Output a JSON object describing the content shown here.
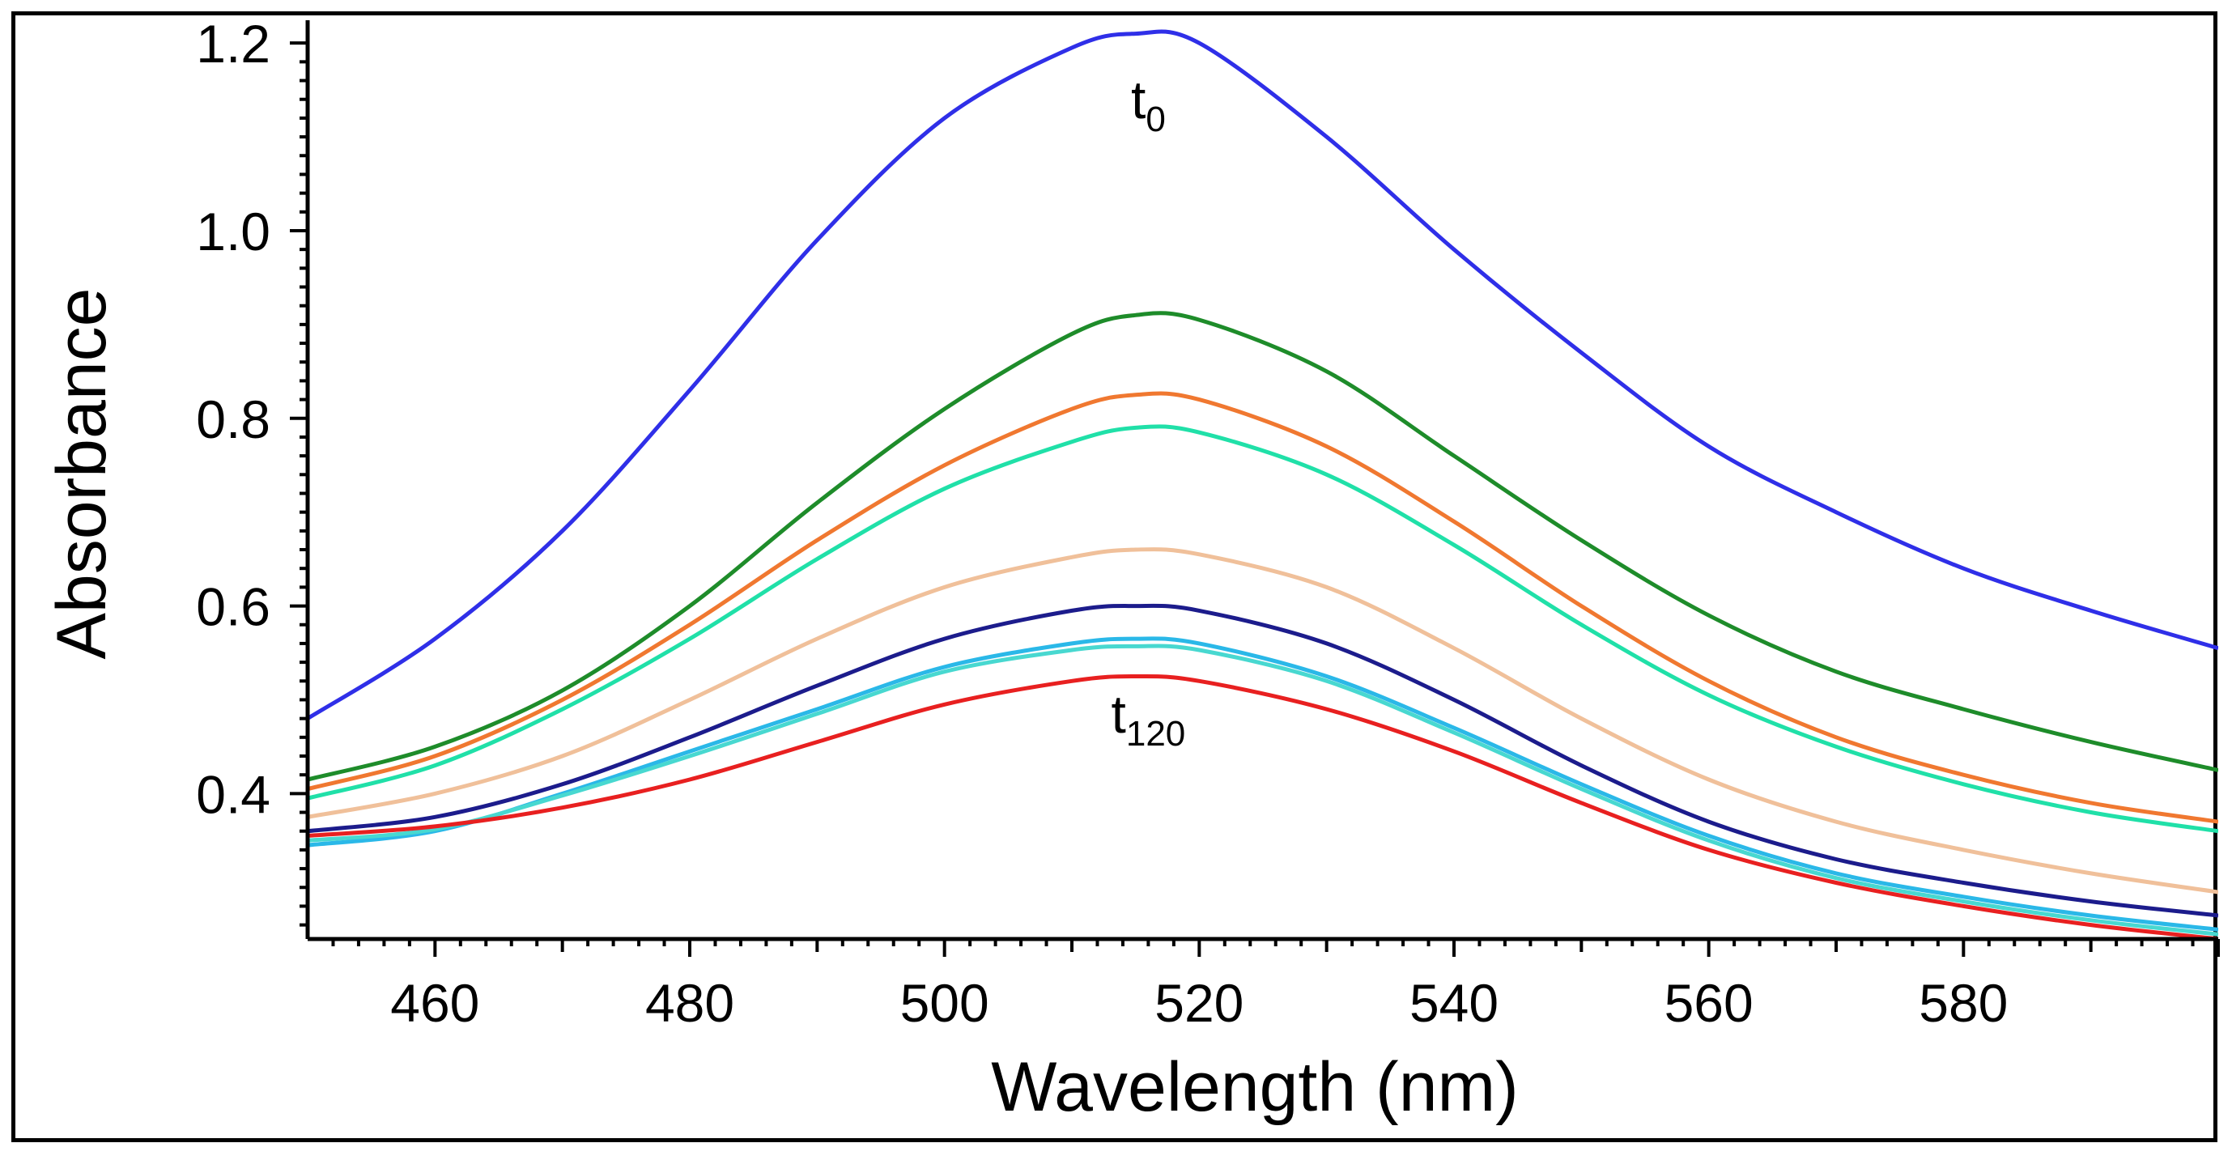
{
  "chart_data": {
    "type": "line",
    "xlabel": "Wavelength (nm)",
    "ylabel": "Absorbance",
    "xlim": [
      450,
      600
    ],
    "ylim": [
      0.245,
      1.22
    ],
    "x_ticks": [
      {
        "value": 460,
        "label": "460"
      },
      {
        "value": 480,
        "label": "480"
      },
      {
        "value": 500,
        "label": "500"
      },
      {
        "value": 520,
        "label": "520"
      },
      {
        "value": 540,
        "label": "540"
      },
      {
        "value": 560,
        "label": "560"
      },
      {
        "value": 580,
        "label": "580"
      }
    ],
    "y_ticks": [
      {
        "value": 0.4,
        "label": "0.4"
      },
      {
        "value": 0.6,
        "label": "0.6"
      },
      {
        "value": 0.8,
        "label": "0.8"
      },
      {
        "value": 1.0,
        "label": "1.0"
      },
      {
        "value": 1.2,
        "label": "1.2"
      }
    ],
    "grid": false,
    "legend": "none",
    "annotations": [
      {
        "base": "t",
        "sub": "0",
        "x": 516,
        "y": 1.12
      },
      {
        "base": "t",
        "sub": "120",
        "x": 516,
        "y": 0.465
      }
    ],
    "series": [
      {
        "color": "#2f2fe8",
        "points": [
          [
            450,
            0.48
          ],
          [
            460,
            0.565
          ],
          [
            470,
            0.68
          ],
          [
            480,
            0.83
          ],
          [
            490,
            0.99
          ],
          [
            500,
            1.12
          ],
          [
            510,
            1.195
          ],
          [
            515,
            1.21
          ],
          [
            520,
            1.2
          ],
          [
            530,
            1.1
          ],
          [
            540,
            0.98
          ],
          [
            550,
            0.87
          ],
          [
            560,
            0.77
          ],
          [
            570,
            0.7
          ],
          [
            580,
            0.64
          ],
          [
            590,
            0.595
          ],
          [
            600,
            0.555
          ]
        ]
      },
      {
        "color": "#1e8c2a",
        "points": [
          [
            450,
            0.415
          ],
          [
            460,
            0.45
          ],
          [
            470,
            0.51
          ],
          [
            480,
            0.6
          ],
          [
            490,
            0.71
          ],
          [
            500,
            0.81
          ],
          [
            510,
            0.89
          ],
          [
            515,
            0.91
          ],
          [
            520,
            0.905
          ],
          [
            530,
            0.85
          ],
          [
            540,
            0.76
          ],
          [
            550,
            0.67
          ],
          [
            560,
            0.59
          ],
          [
            570,
            0.53
          ],
          [
            580,
            0.49
          ],
          [
            590,
            0.455
          ],
          [
            600,
            0.425
          ]
        ]
      },
      {
        "color": "#f07830",
        "points": [
          [
            450,
            0.405
          ],
          [
            460,
            0.44
          ],
          [
            470,
            0.5
          ],
          [
            480,
            0.58
          ],
          [
            490,
            0.67
          ],
          [
            500,
            0.75
          ],
          [
            510,
            0.81
          ],
          [
            515,
            0.825
          ],
          [
            520,
            0.82
          ],
          [
            530,
            0.77
          ],
          [
            540,
            0.69
          ],
          [
            550,
            0.6
          ],
          [
            560,
            0.52
          ],
          [
            570,
            0.46
          ],
          [
            580,
            0.42
          ],
          [
            590,
            0.39
          ],
          [
            600,
            0.37
          ]
        ]
      },
      {
        "color": "#20e0a8",
        "points": [
          [
            450,
            0.395
          ],
          [
            460,
            0.43
          ],
          [
            470,
            0.49
          ],
          [
            480,
            0.565
          ],
          [
            490,
            0.65
          ],
          [
            500,
            0.725
          ],
          [
            510,
            0.775
          ],
          [
            515,
            0.79
          ],
          [
            520,
            0.785
          ],
          [
            530,
            0.74
          ],
          [
            540,
            0.665
          ],
          [
            550,
            0.58
          ],
          [
            560,
            0.505
          ],
          [
            570,
            0.45
          ],
          [
            580,
            0.41
          ],
          [
            590,
            0.38
          ],
          [
            600,
            0.36
          ]
        ]
      },
      {
        "color": "#f0c09a",
        "points": [
          [
            450,
            0.375
          ],
          [
            460,
            0.4
          ],
          [
            470,
            0.44
          ],
          [
            480,
            0.5
          ],
          [
            490,
            0.565
          ],
          [
            500,
            0.62
          ],
          [
            510,
            0.652
          ],
          [
            515,
            0.66
          ],
          [
            520,
            0.655
          ],
          [
            530,
            0.62
          ],
          [
            540,
            0.555
          ],
          [
            550,
            0.48
          ],
          [
            560,
            0.415
          ],
          [
            570,
            0.37
          ],
          [
            580,
            0.34
          ],
          [
            590,
            0.315
          ],
          [
            600,
            0.295
          ]
        ]
      },
      {
        "color": "#1c1c8c",
        "points": [
          [
            450,
            0.36
          ],
          [
            460,
            0.375
          ],
          [
            470,
            0.41
          ],
          [
            480,
            0.46
          ],
          [
            490,
            0.515
          ],
          [
            500,
            0.565
          ],
          [
            510,
            0.595
          ],
          [
            515,
            0.6
          ],
          [
            520,
            0.595
          ],
          [
            530,
            0.56
          ],
          [
            540,
            0.5
          ],
          [
            550,
            0.43
          ],
          [
            560,
            0.37
          ],
          [
            570,
            0.33
          ],
          [
            580,
            0.305
          ],
          [
            590,
            0.285
          ],
          [
            600,
            0.27
          ]
        ]
      },
      {
        "color": "#2ab8e8",
        "points": [
          [
            450,
            0.345
          ],
          [
            460,
            0.36
          ],
          [
            470,
            0.4
          ],
          [
            480,
            0.445
          ],
          [
            490,
            0.49
          ],
          [
            500,
            0.535
          ],
          [
            510,
            0.56
          ],
          [
            515,
            0.565
          ],
          [
            520,
            0.56
          ],
          [
            530,
            0.525
          ],
          [
            540,
            0.47
          ],
          [
            550,
            0.41
          ],
          [
            560,
            0.355
          ],
          [
            570,
            0.315
          ],
          [
            580,
            0.29
          ],
          [
            590,
            0.27
          ],
          [
            600,
            0.255
          ]
        ]
      },
      {
        "color": "#48d8d0",
        "points": [
          [
            450,
            0.35
          ],
          [
            460,
            0.362
          ],
          [
            470,
            0.398
          ],
          [
            480,
            0.44
          ],
          [
            490,
            0.485
          ],
          [
            500,
            0.53
          ],
          [
            510,
            0.553
          ],
          [
            515,
            0.557
          ],
          [
            520,
            0.553
          ],
          [
            530,
            0.52
          ],
          [
            540,
            0.465
          ],
          [
            550,
            0.405
          ],
          [
            560,
            0.35
          ],
          [
            570,
            0.31
          ],
          [
            580,
            0.285
          ],
          [
            590,
            0.265
          ],
          [
            600,
            0.25
          ]
        ]
      },
      {
        "color": "#e82020",
        "points": [
          [
            450,
            0.355
          ],
          [
            460,
            0.365
          ],
          [
            470,
            0.385
          ],
          [
            480,
            0.415
          ],
          [
            490,
            0.455
          ],
          [
            500,
            0.495
          ],
          [
            510,
            0.52
          ],
          [
            515,
            0.525
          ],
          [
            520,
            0.52
          ],
          [
            530,
            0.49
          ],
          [
            540,
            0.445
          ],
          [
            550,
            0.39
          ],
          [
            560,
            0.34
          ],
          [
            570,
            0.305
          ],
          [
            580,
            0.28
          ],
          [
            590,
            0.26
          ],
          [
            600,
            0.245
          ]
        ]
      }
    ]
  }
}
